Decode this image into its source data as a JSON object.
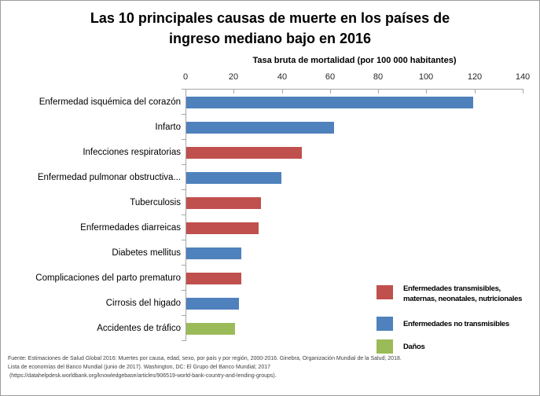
{
  "frame": {
    "background": "#ffffff",
    "border_color": "#9d9d9d"
  },
  "chart_data": {
    "type": "bar",
    "orientation": "horizontal",
    "title_lines": [
      "Las 10 principales causas de muerte en los países de",
      "ingreso mediano bajo en 2016"
    ],
    "axis_title": "Tasa bruta de mortalidad (por 100 000 habitantes)",
    "xlim": [
      0,
      140
    ],
    "x_ticks": [
      0,
      20,
      40,
      60,
      80,
      100,
      120,
      140
    ],
    "grid": false,
    "axis_color": "#a6a6a6",
    "tick_label_color": "#262626",
    "categories": [
      "Enfermedad isquémica del corazón",
      "Infarto",
      "Infecciones respiratorias",
      "Enfermedad pulmonar obstructiva...",
      "Tuberculosis",
      "Enfermedades diarreicas",
      "Diabetes mellitus",
      "Complicaciones del parto prematuro",
      "Cirrosis del higado",
      "Accidentes de tráfico"
    ],
    "values": [
      119,
      61.5,
      48,
      39.5,
      31,
      30,
      23,
      22.7,
      21.8,
      20.3
    ],
    "bar_groups": [
      "no_transmisibles",
      "no_transmisibles",
      "transmisibles",
      "no_transmisibles",
      "transmisibles",
      "transmisibles",
      "no_transmisibles",
      "transmisibles",
      "no_transmisibles",
      "danos"
    ],
    "group_colors": {
      "transmisibles": "#C0504D",
      "no_transmisibles": "#4F81BD",
      "danos": "#9BBB59"
    },
    "legend_position": "inside-bottom-right",
    "legend": [
      {
        "group": "transmisibles",
        "color": "#C0504D",
        "label": "Enfermedades transmisibles,\nmaternas, neonatales, nutricionales"
      },
      {
        "group": "no_transmisibles",
        "color": "#4F81BD",
        "label": "Enfermedades no transmisibles"
      },
      {
        "group": "danos",
        "color": "#9BBB59",
        "label": "Daños"
      }
    ]
  },
  "footer": {
    "lines": [
      "Fuente: Estimaciones de Salud Global 2016: Muertes por causa, edad, sexo, por país y por región, 2000-2016. Ginebra, Organización Mundial de la Salud; 2018.",
      "Lista de economías del Banco Mundial (junio de 2017). Washington, DC: El Grupo del Banco Mundial; 2017",
      " (https://datahelpdesk.worldbank.org/knowledgebase/articles/906519-world-bank-country-and-lending-groups)."
    ]
  }
}
